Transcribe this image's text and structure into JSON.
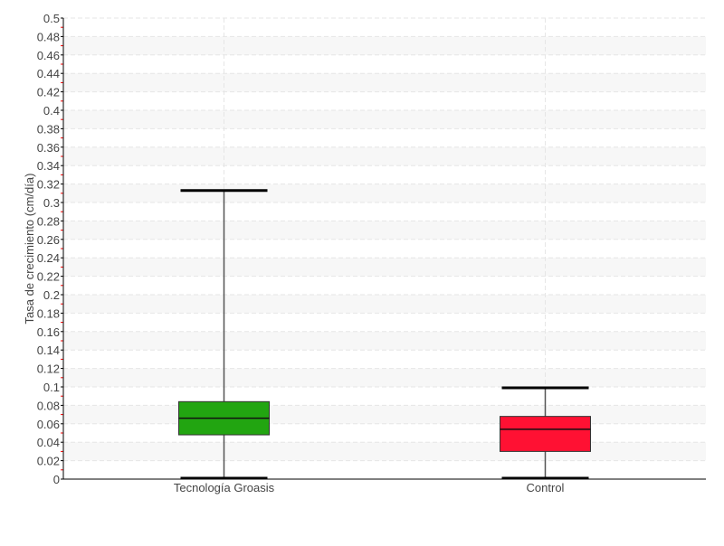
{
  "chart_data": {
    "type": "box",
    "title": "",
    "xlabel": "",
    "ylabel": "Tasa de crecimiento (cm/día)",
    "ylim": [
      0,
      0.5
    ],
    "ytick_step": 0.02,
    "grid": true,
    "categories": [
      "Tecnología Groasis",
      "Control"
    ],
    "boxes": [
      {
        "category": "Tecnología Groasis",
        "min": 0.001,
        "q1": 0.048,
        "median": 0.066,
        "q3": 0.084,
        "max": 0.313,
        "color": "#22a511"
      },
      {
        "category": "Control",
        "min": 0.001,
        "q1": 0.03,
        "median": 0.054,
        "q3": 0.068,
        "max": 0.099,
        "color": "#ff1133"
      }
    ]
  }
}
